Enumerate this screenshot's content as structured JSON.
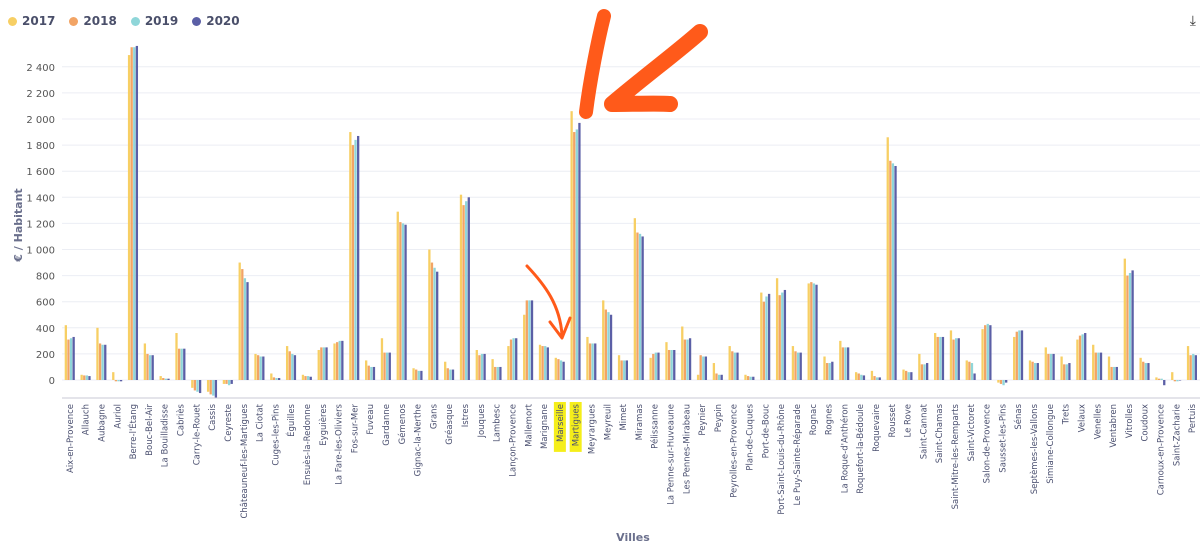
{
  "legend": [
    {
      "label": "2017",
      "color": "#f7cf64"
    },
    {
      "label": "2018",
      "color": "#f2a465"
    },
    {
      "label": "2019",
      "color": "#8fd6d9"
    },
    {
      "label": "2020",
      "color": "#5b5fa6"
    }
  ],
  "annotation_color": "#ff5a1a",
  "highlight_color": "#f5ee1a",
  "chart_data": {
    "type": "bar",
    "xlabel": "Villes",
    "ylabel": "€ / Habitant",
    "ylim": [
      -140,
      2560
    ],
    "yticks": [
      0,
      200,
      400,
      600,
      800,
      1000,
      1200,
      1400,
      1600,
      1800,
      2000,
      2200,
      2400
    ],
    "ytick_labels": [
      "0",
      "200",
      "400",
      "600",
      "800",
      "1 000",
      "1 200",
      "1 400",
      "1 600",
      "1 800",
      "2 000",
      "2 200",
      "2 400"
    ],
    "grid": true,
    "legend_position": "top-left",
    "highlighted_categories": [
      "Marseille",
      "Martigues"
    ],
    "categories": [
      "Aix-en-Provence",
      "Allauch",
      "Aubagne",
      "Auriol",
      "Berre-l'Étang",
      "Bouc-Bel-Air",
      "La Bouilladisse",
      "Cabriès",
      "Carry-le-Rouet",
      "Cassis",
      "Ceyreste",
      "Châteauneuf-les-Martigues",
      "La Ciotat",
      "Cuges-les-Pins",
      "Éguilles",
      "Ensuès-la-Redonne",
      "Eyguières",
      "La Fare-les-Oliviers",
      "Fos-sur-Mer",
      "Fuveau",
      "Gardanne",
      "Gémenos",
      "Gignac-la-Nerthe",
      "Grans",
      "Gréasque",
      "Istres",
      "Jouques",
      "Lambesc",
      "Lançon-Provence",
      "Mallemort",
      "Marignane",
      "Marseille",
      "Martigues",
      "Meyrargues",
      "Meyreuil",
      "Mimet",
      "Miramas",
      "Pélissanne",
      "La Penne-sur-Huveaune",
      "Les Pennes-Mirabeau",
      "Peynier",
      "Peypin",
      "Peyrolles-en-Provence",
      "Plan-de-Cuques",
      "Port-de-Bouc",
      "Port-Saint-Louis-du-Rhône",
      "Le Puy-Sainte-Réparade",
      "Rognac",
      "Rognes",
      "La Roque-d'Anthéron",
      "Roquefort-la-Bédoule",
      "Roquevaire",
      "Rousset",
      "Le Rove",
      "Saint-Cannat",
      "Saint-Chamas",
      "Saint-Mitre-les-Remparts",
      "Saint-Victoret",
      "Salon-de-Provence",
      "Sausset-les-Pins",
      "Sénas",
      "Septèmes-les-Vallons",
      "Simiane-Collongue",
      "Trets",
      "Velaux",
      "Venelles",
      "Ventabren",
      "Vitrolles",
      "Coudoux",
      "Carnoux-en-Provence",
      "Saint-Zacharie",
      "Pertuis"
    ],
    "series": [
      {
        "name": "2017",
        "values": [
          420,
          40,
          400,
          60,
          2490,
          280,
          30,
          360,
          -60,
          -90,
          -30,
          900,
          200,
          50,
          260,
          40,
          230,
          280,
          1900,
          150,
          320,
          1290,
          90,
          1000,
          140,
          1420,
          230,
          160,
          260,
          500,
          270,
          170,
          2060,
          330,
          610,
          190,
          1240,
          170,
          290,
          410,
          40,
          130,
          260,
          40,
          670,
          780,
          260,
          740,
          180,
          300,
          60,
          70,
          1860,
          80,
          200,
          360,
          380,
          150,
          390,
          -20,
          330,
          150,
          250,
          180,
          310,
          270,
          180,
          930,
          170,
          20,
          60,
          260
        ]
      },
      {
        "name": "2018",
        "values": [
          310,
          35,
          280,
          -10,
          2550,
          200,
          15,
          240,
          -80,
          -110,
          -30,
          850,
          190,
          20,
          220,
          30,
          250,
          290,
          1800,
          110,
          210,
          1210,
          80,
          900,
          90,
          1340,
          190,
          100,
          310,
          610,
          260,
          160,
          1900,
          280,
          540,
          150,
          1130,
          200,
          230,
          310,
          190,
          50,
          220,
          30,
          600,
          650,
          220,
          750,
          130,
          250,
          50,
          30,
          1680,
          70,
          120,
          330,
          310,
          140,
          420,
          -30,
          370,
          140,
          200,
          120,
          340,
          210,
          100,
          800,
          140,
          10,
          -10,
          190
        ]
      },
      {
        "name": "2019",
        "values": [
          320,
          35,
          270,
          -10,
          2550,
          190,
          10,
          240,
          -90,
          -120,
          -40,
          780,
          180,
          15,
          200,
          30,
          250,
          300,
          1840,
          100,
          210,
          1200,
          70,
          860,
          80,
          1370,
          200,
          100,
          320,
          610,
          260,
          150,
          1920,
          280,
          520,
          150,
          1120,
          210,
          230,
          310,
          180,
          40,
          210,
          25,
          640,
          670,
          210,
          740,
          130,
          250,
          40,
          20,
          1660,
          60,
          120,
          330,
          320,
          130,
          430,
          -40,
          380,
          130,
          200,
          120,
          350,
          210,
          100,
          820,
          130,
          10,
          -10,
          200
        ]
      },
      {
        "name": "2020",
        "values": [
          330,
          30,
          270,
          -10,
          2560,
          190,
          10,
          240,
          -100,
          -140,
          -30,
          750,
          180,
          15,
          190,
          25,
          250,
          300,
          1870,
          100,
          210,
          1190,
          70,
          830,
          80,
          1400,
          200,
          100,
          320,
          610,
          250,
          140,
          1970,
          280,
          500,
          150,
          1100,
          210,
          230,
          320,
          180,
          40,
          210,
          25,
          660,
          690,
          210,
          730,
          140,
          250,
          35,
          20,
          1640,
          60,
          130,
          330,
          320,
          50,
          420,
          -20,
          380,
          130,
          200,
          130,
          360,
          210,
          100,
          840,
          130,
          -40,
          0,
          190
        ]
      }
    ]
  }
}
